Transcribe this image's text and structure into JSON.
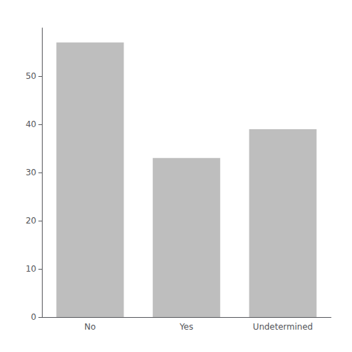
{
  "chart_data": {
    "type": "bar",
    "categories": [
      "No",
      "Yes",
      "Undetermined"
    ],
    "values": [
      57,
      33,
      39
    ],
    "color": "#bebebe",
    "ylim": [
      0,
      60
    ],
    "yticks": [
      0,
      10,
      20,
      30,
      40,
      50
    ],
    "grid": false
  }
}
